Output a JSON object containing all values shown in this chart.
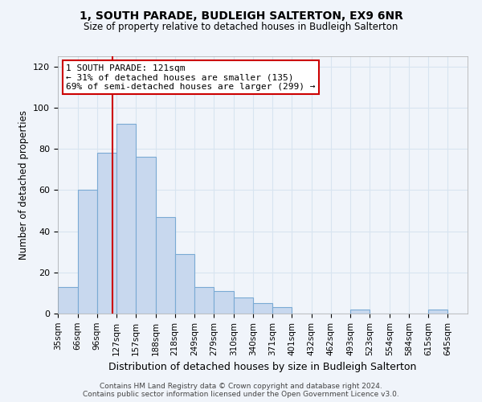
{
  "title": "1, SOUTH PARADE, BUDLEIGH SALTERTON, EX9 6NR",
  "subtitle": "Size of property relative to detached houses in Budleigh Salterton",
  "xlabel": "Distribution of detached houses by size in Budleigh Salterton",
  "ylabel": "Number of detached properties",
  "bin_labels": [
    "35sqm",
    "66sqm",
    "96sqm",
    "127sqm",
    "157sqm",
    "188sqm",
    "218sqm",
    "249sqm",
    "279sqm",
    "310sqm",
    "340sqm",
    "371sqm",
    "401sqm",
    "432sqm",
    "462sqm",
    "493sqm",
    "523sqm",
    "554sqm",
    "584sqm",
    "615sqm",
    "645sqm"
  ],
  "bar_heights": [
    13,
    60,
    78,
    92,
    76,
    47,
    29,
    13,
    11,
    8,
    5,
    3,
    0,
    0,
    0,
    2,
    0,
    0,
    0,
    2,
    0
  ],
  "bar_color": "#c8d8ee",
  "bar_edge_color": "#7aaad4",
  "ylim": [
    0,
    125
  ],
  "yticks": [
    0,
    20,
    40,
    60,
    80,
    100,
    120
  ],
  "property_line_x": 121,
  "property_line_label": "1 SOUTH PARADE: 121sqm",
  "annotation_line1": "← 31% of detached houses are smaller (135)",
  "annotation_line2": "69% of semi-detached houses are larger (299) →",
  "annotation_box_color": "#ffffff",
  "annotation_box_edge_color": "#cc0000",
  "property_line_color": "#cc0000",
  "footer_line1": "Contains HM Land Registry data © Crown copyright and database right 2024.",
  "footer_line2": "Contains public sector information licensed under the Open Government Licence v3.0.",
  "bin_edges": [
    35,
    66,
    96,
    127,
    157,
    188,
    218,
    249,
    279,
    310,
    340,
    371,
    401,
    432,
    462,
    493,
    523,
    554,
    584,
    615,
    645,
    676
  ],
  "grid_color": "#d8e4f0",
  "bg_color": "#f0f4fa"
}
